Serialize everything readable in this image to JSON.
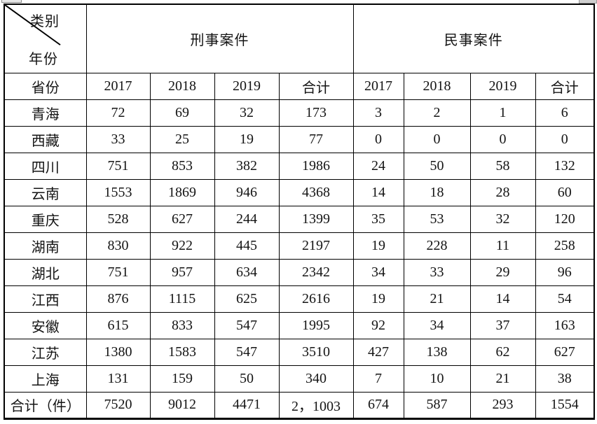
{
  "table": {
    "corner": {
      "top_label": "类别",
      "bottom_label": "年份"
    },
    "groups": [
      {
        "label": "刑事案件"
      },
      {
        "label": "民事案件"
      }
    ],
    "row_header_label": "省份",
    "year_headers": [
      "2017",
      "2018",
      "2019",
      "合计",
      "2017",
      "2018",
      "2019",
      "合计"
    ],
    "rows": [
      {
        "province": "青海",
        "values": [
          "72",
          "69",
          "32",
          "173",
          "3",
          "2",
          "1",
          "6"
        ]
      },
      {
        "province": "西藏",
        "values": [
          "33",
          "25",
          "19",
          "77",
          "0",
          "0",
          "0",
          "0"
        ]
      },
      {
        "province": "四川",
        "values": [
          "751",
          "853",
          "382",
          "1986",
          "24",
          "50",
          "58",
          "132"
        ]
      },
      {
        "province": "云南",
        "values": [
          "1553",
          "1869",
          "946",
          "4368",
          "14",
          "18",
          "28",
          "60"
        ]
      },
      {
        "province": "重庆",
        "values": [
          "528",
          "627",
          "244",
          "1399",
          "35",
          "53",
          "32",
          "120"
        ]
      },
      {
        "province": "湖南",
        "values": [
          "830",
          "922",
          "445",
          "2197",
          "19",
          "228",
          "11",
          "258"
        ]
      },
      {
        "province": "湖北",
        "values": [
          "751",
          "957",
          "634",
          "2342",
          "34",
          "33",
          "29",
          "96"
        ]
      },
      {
        "province": "江西",
        "values": [
          "876",
          "1115",
          "625",
          "2616",
          "19",
          "21",
          "14",
          "54"
        ]
      },
      {
        "province": "安徽",
        "values": [
          "615",
          "833",
          "547",
          "1995",
          "92",
          "34",
          "37",
          "163"
        ]
      },
      {
        "province": "江苏",
        "values": [
          "1380",
          "1583",
          "547",
          "3510",
          "427",
          "138",
          "62",
          "627"
        ]
      },
      {
        "province": "上海",
        "values": [
          "131",
          "159",
          "50",
          "340",
          "7",
          "10",
          "21",
          "38"
        ]
      },
      {
        "province": "合计（件）",
        "values": [
          "7520",
          "9012",
          "4471",
          "2，1003",
          "674",
          "587",
          "293",
          "1554"
        ]
      }
    ]
  }
}
